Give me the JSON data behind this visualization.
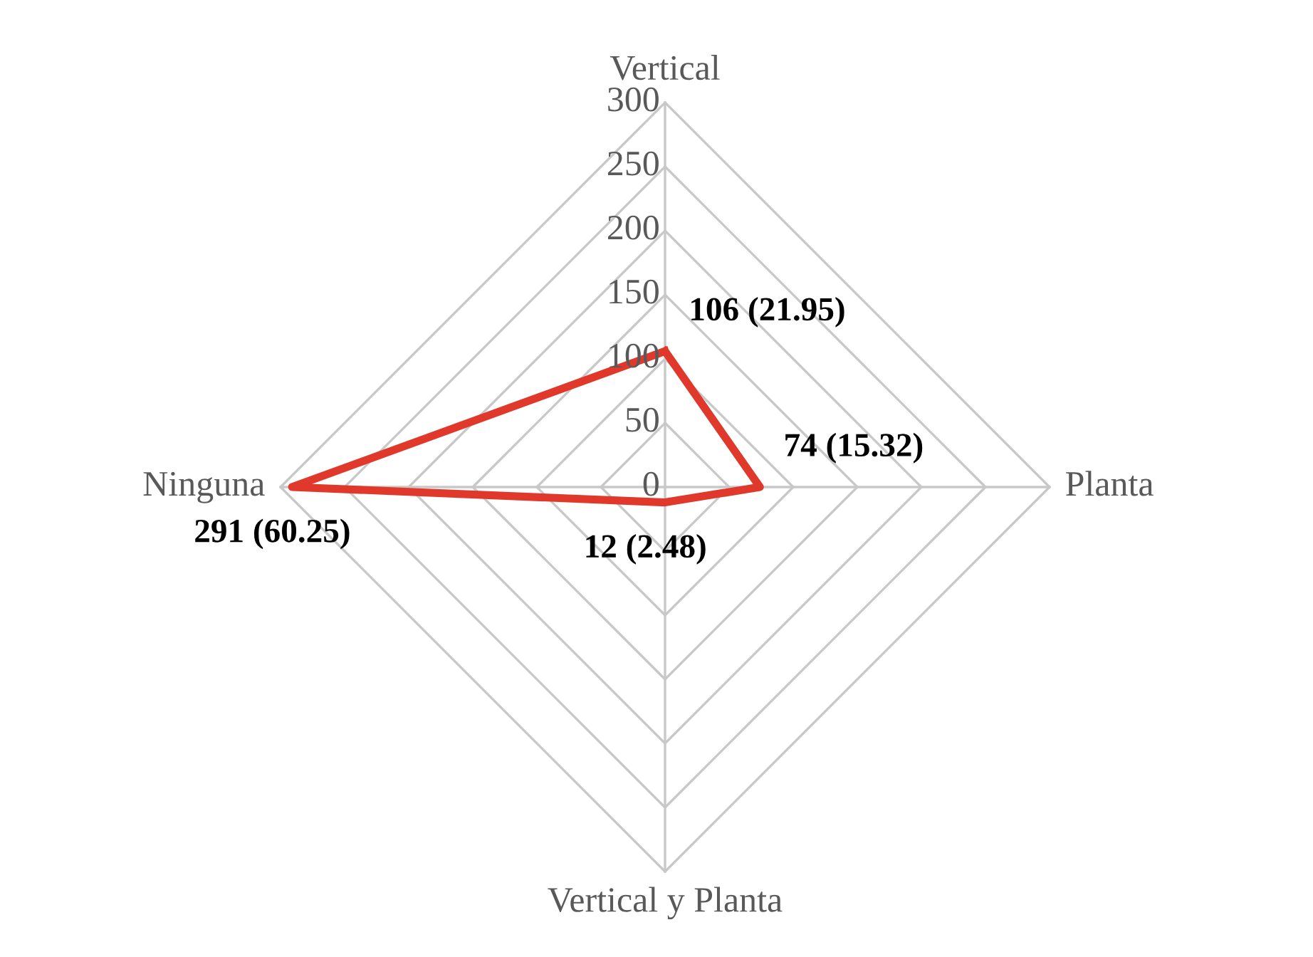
{
  "chart_data": {
    "type": "radar",
    "categories": [
      "Vertical",
      "Planta",
      "Vertical y Planta",
      "Ninguna"
    ],
    "series": [
      {
        "color": "#e0392b",
        "values": [
          106,
          74,
          12,
          291
        ],
        "value_labels": [
          "106 (21.95)",
          "74 (15.32)",
          "12 (2.48)",
          "291 (60.25)"
        ]
      }
    ],
    "ylim": [
      0,
      300
    ],
    "yticks": [
      0,
      50,
      100,
      150,
      200,
      250,
      300
    ],
    "grid": true,
    "marker": "none",
    "line_style": "solid"
  }
}
